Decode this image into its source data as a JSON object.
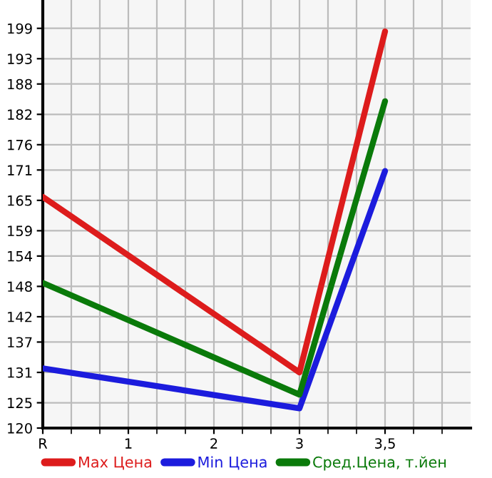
{
  "chart_data": {
    "type": "line",
    "categories": [
      "R",
      "1",
      "2",
      "3",
      "3,5"
    ],
    "series": [
      {
        "name": "Max Цена",
        "color": "#dd1c1c",
        "values": [
          165.7,
          null,
          null,
          131.0,
          198.4
        ]
      },
      {
        "name": "Min Цена",
        "color": "#1c1cdd",
        "values": [
          131.8,
          null,
          null,
          123.9,
          170.8
        ]
      },
      {
        "name": "Сред.Цена, т.йен",
        "color": "#0a7a0a",
        "values": [
          148.7,
          null,
          null,
          126.6,
          184.6
        ]
      }
    ],
    "ylim": [
      120,
      204.6
    ],
    "yticks": [
      120,
      125,
      131,
      137,
      142,
      148,
      154,
      159,
      165,
      171,
      176,
      182,
      188,
      193,
      199
    ],
    "grid": true,
    "legend": "bottom",
    "marker": "none",
    "line_style": "solid"
  }
}
